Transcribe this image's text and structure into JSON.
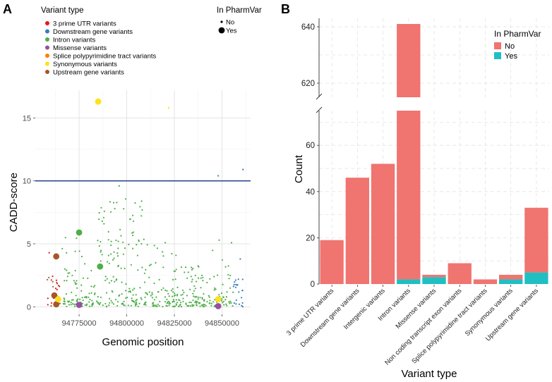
{
  "chart_data": [
    {
      "panel": "A",
      "type": "scatter",
      "xlabel": "Genomic position",
      "ylabel": "CADD-score",
      "xlim": [
        94752000,
        94865000
      ],
      "ylim": [
        -0.6,
        17.2
      ],
      "xticks": [
        94775000,
        94800000,
        94825000,
        94850000
      ],
      "xtick_labels": [
        "94775000",
        "94800000",
        "94825000",
        "94850000"
      ],
      "yticks": [
        0,
        5,
        10,
        15
      ],
      "ytick_labels": [
        "0",
        "5",
        "10",
        "15"
      ],
      "threshold_line": 10,
      "grid": true,
      "legend_color_title": "Variant type",
      "legend_size_title": "In PharmVar",
      "size_legend": [
        "No",
        "Yes"
      ],
      "categories": [
        {
          "name": "3 prime UTR variants",
          "color": "#e41a1c"
        },
        {
          "name": "Downstream gene variants",
          "color": "#377eb8"
        },
        {
          "name": "Intron variants",
          "color": "#4daf4a"
        },
        {
          "name": "Missense variants",
          "color": "#984ea3"
        },
        {
          "name": "Splice polypyrimidine tract variants",
          "color": "#ff7f00"
        },
        {
          "name": "Synonymous variants",
          "color": "#ffe119"
        },
        {
          "name": "Upstream gene variants",
          "color": "#a65628"
        }
      ],
      "pharmvar_points": [
        {
          "x": 94785000,
          "y": 16.3,
          "category": "Synonymous variants"
        },
        {
          "x": 94775000,
          "y": 5.9,
          "category": "Intron variants"
        },
        {
          "x": 94786000,
          "y": 3.2,
          "category": "Intron variants"
        },
        {
          "x": 94763000,
          "y": 4.0,
          "category": "Upstream gene variants"
        },
        {
          "x": 94762000,
          "y": 0.9,
          "category": "Upstream gene variants"
        },
        {
          "x": 94763000,
          "y": 0.2,
          "category": "Upstream gene variants"
        },
        {
          "x": 94764000,
          "y": 0.6,
          "category": "Synonymous variants"
        },
        {
          "x": 94775000,
          "y": 0.15,
          "category": "Missense variants"
        },
        {
          "x": 94848000,
          "y": 0.6,
          "category": "Synonymous variants"
        },
        {
          "x": 94848000,
          "y": 0.05,
          "category": "Missense variants"
        }
      ],
      "notable_small_points": [
        {
          "x": 94822000,
          "y": 15.8,
          "category": "Synonymous variants"
        },
        {
          "x": 94848000,
          "y": 10.4,
          "category": "Intron variants"
        },
        {
          "x": 94861000,
          "y": 10.9,
          "category": "Downstream gene variants"
        },
        {
          "x": 94796000,
          "y": 9.6,
          "category": "Intron variants"
        }
      ]
    },
    {
      "panel": "B",
      "type": "bar",
      "xlabel": "Variant type",
      "ylabel": "Count",
      "axis_break": {
        "lower_range": [
          0,
          75
        ],
        "upper_range": [
          615,
          643
        ]
      },
      "yticks_lower": [
        0,
        20,
        40,
        60
      ],
      "yticks_upper": [
        620,
        640
      ],
      "legend_title": "In PharmVar",
      "categories": [
        "3 prime UTR variants",
        "Downstream gene variants",
        "Intergenic variants",
        "Intron variants",
        "Missense variants",
        "Non coding transcript exon variants",
        "Splice polypyrimidine tract variants",
        "Synonymous variants",
        "Upstream gene variants"
      ],
      "series": [
        {
          "name": "No",
          "color": "#f07470",
          "values": [
            19,
            46,
            52,
            639,
            1,
            9,
            2,
            2,
            28
          ]
        },
        {
          "name": "Yes",
          "color": "#1fbfc3",
          "values": [
            0,
            0,
            0,
            2,
            3,
            0,
            0,
            2,
            5
          ]
        }
      ]
    }
  ]
}
